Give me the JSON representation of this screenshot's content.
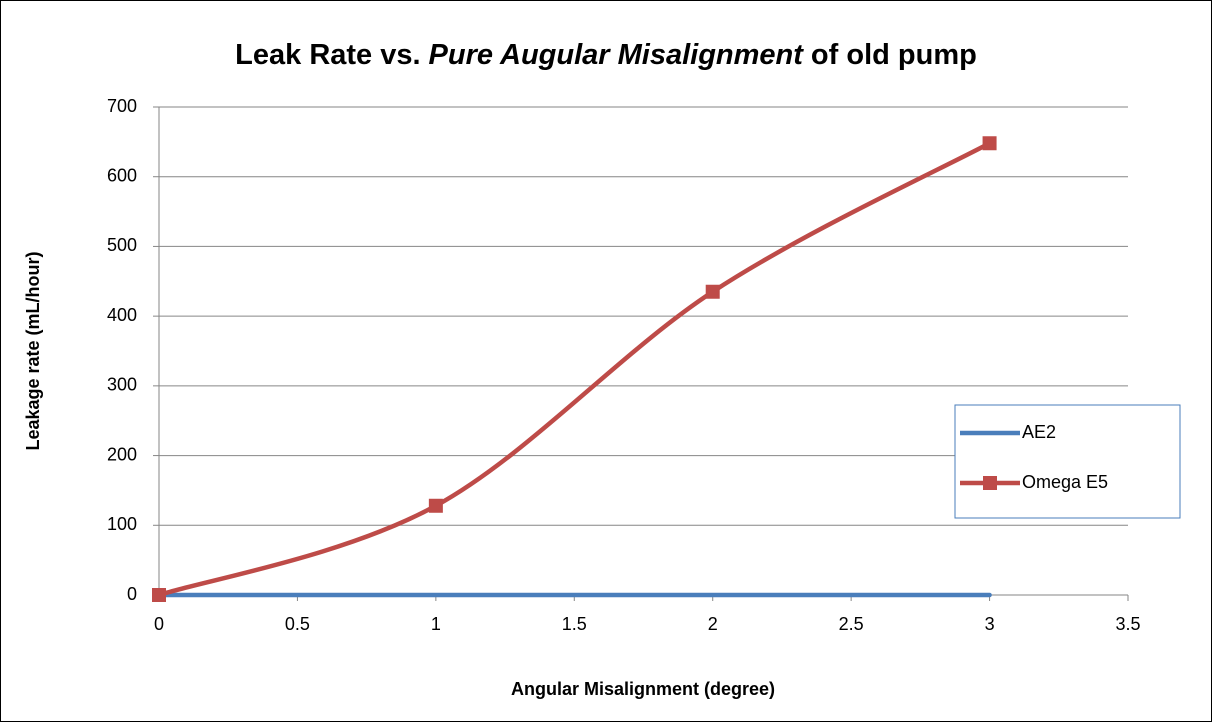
{
  "chart_data": {
    "type": "line",
    "title": [
      "Leak Rate vs.",
      "Pure Augular Misalignment",
      "of old pump"
    ],
    "title_italic": [
      false,
      true,
      false
    ],
    "xlabel": "Angular Misalignment (degree)",
    "ylabel": "Leakage rate (mL/hour)",
    "x": [
      0,
      1,
      2,
      3
    ],
    "series": [
      {
        "name": "AE2",
        "color": "#4a7ebb",
        "marker": "none",
        "values": [
          0,
          0,
          0,
          0
        ]
      },
      {
        "name": "Omega E5",
        "color": "#be4b48",
        "marker": "square",
        "values": [
          0,
          128,
          435,
          648
        ]
      }
    ],
    "smooth": true,
    "xlim": [
      0,
      3.5
    ],
    "xticks": [
      0,
      0.5,
      1,
      1.5,
      2,
      2.5,
      3,
      3.5
    ],
    "ylim": [
      0,
      700
    ],
    "yticks": [
      0,
      100,
      200,
      300,
      400,
      500,
      600,
      700
    ],
    "grid": true,
    "legend": "right"
  }
}
